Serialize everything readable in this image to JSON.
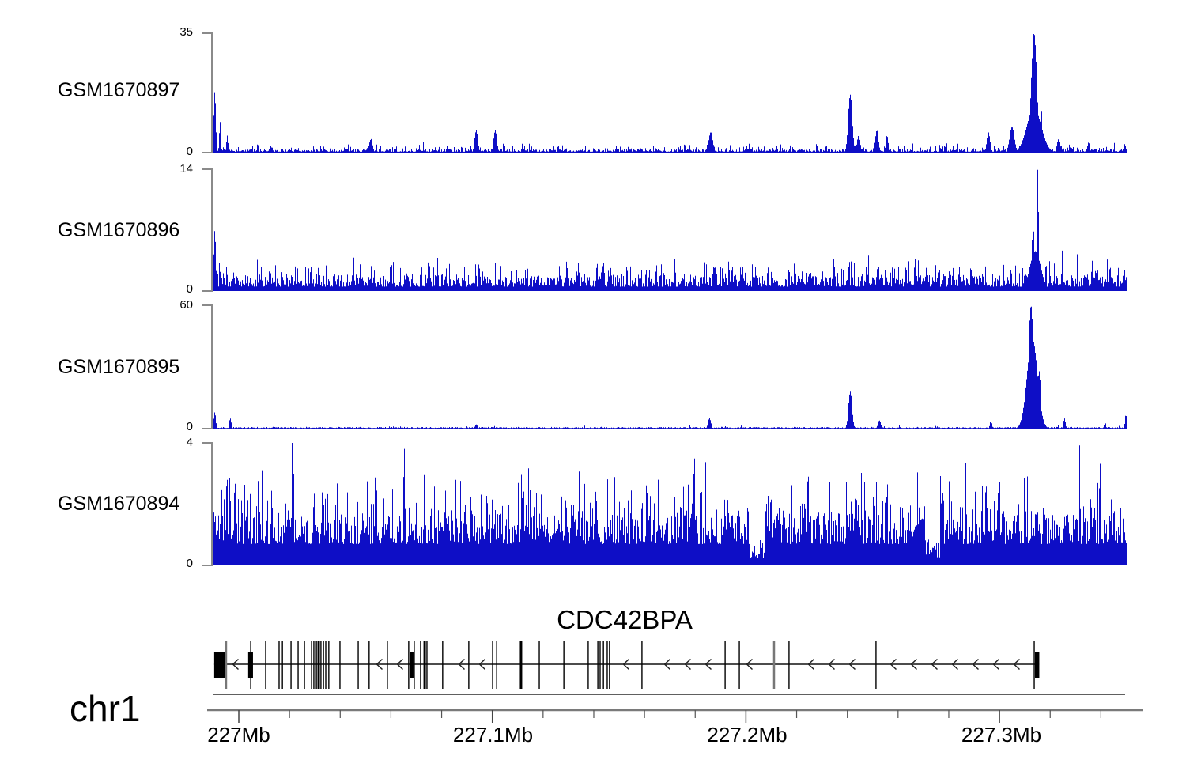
{
  "chart_data": {
    "type": "area",
    "title": "",
    "region": {
      "chrom": "chr1",
      "start_mb": 226.9897,
      "end_mb": 227.3499,
      "unit": "Mb"
    },
    "axis": {
      "tick_labels": [
        "227Mb",
        "227.1Mb",
        "227.2Mb",
        "227.3Mb"
      ],
      "major_ticks_mb": [
        227.0,
        227.1,
        227.2,
        227.3
      ],
      "minor_tick_interval_mb": 0.02,
      "grid": false
    },
    "signal_color": "#0e0ec6",
    "axis_color": "#8a8a8a",
    "tracks": [
      {
        "label": "GSM1670897",
        "ymax": 35,
        "ymin": 0,
        "ymin_label": "0",
        "seed": 7,
        "noise": {
          "base": 0.25,
          "jitter": 0.9,
          "p": 0.3,
          "spike": 2.0,
          "p2": 0.05,
          "spike2": 1.6
        },
        "peaks": [
          [
            226.9904,
            18,
            1.2
          ],
          [
            226.9925,
            9,
            1
          ],
          [
            226.9953,
            5,
            1
          ],
          [
            227.052,
            4,
            2
          ],
          [
            227.0935,
            6.5,
            2
          ],
          [
            227.101,
            6.5,
            2
          ],
          [
            227.186,
            6,
            2.5
          ],
          [
            227.241,
            17,
            2.5
          ],
          [
            227.2443,
            5,
            2
          ],
          [
            227.2515,
            6.5,
            2
          ],
          [
            227.2555,
            5,
            1.5
          ],
          [
            227.2955,
            6,
            2
          ],
          [
            227.3048,
            7.5,
            3
          ],
          [
            227.3135,
            35,
            3.5
          ],
          [
            227.3135,
            13,
            9
          ],
          [
            227.3163,
            14,
            1.2
          ],
          [
            227.3232,
            4,
            2
          ],
          [
            227.335,
            3,
            1.5
          ],
          [
            227.3492,
            2.5,
            1.5
          ]
        ]
      },
      {
        "label": "GSM1670896",
        "ymax": 14,
        "ymin": 0,
        "ymin_label": "0",
        "seed": 11,
        "noise": {
          "base": 0.5,
          "jitter": 1.4,
          "p": 0.45,
          "spike": 2.4,
          "p2": 0.08,
          "spike2": 1.6
        },
        "peaks": [
          [
            226.9904,
            7,
            1.2
          ],
          [
            227.3131,
            9,
            1.2
          ],
          [
            227.3149,
            14,
            1.2
          ],
          [
            227.314,
            4.5,
            7
          ],
          [
            227.3365,
            3.5,
            1.2
          ],
          [
            227.349,
            3,
            1.2
          ]
        ]
      },
      {
        "label": "GSM1670895",
        "ymax": 60,
        "ymin": 0,
        "ymin_label": "0",
        "seed": 13,
        "noise": {
          "base": 0.3,
          "jitter": 0.5,
          "p": 0.05,
          "spike": 1.2,
          "p2": 0.0,
          "spike2": 0
        },
        "peaks": [
          [
            226.9904,
            8,
            1.2
          ],
          [
            226.9965,
            5,
            1.2
          ],
          [
            227.0935,
            2,
            1.5
          ],
          [
            227.1855,
            5,
            1.8
          ],
          [
            227.241,
            18,
            2.2
          ],
          [
            227.2525,
            4,
            1.8
          ],
          [
            227.2965,
            4,
            1.2
          ],
          [
            227.3123,
            60,
            3
          ],
          [
            227.3128,
            44,
            6.5
          ],
          [
            227.3155,
            28,
            2
          ],
          [
            227.3255,
            5,
            1.2
          ],
          [
            227.3415,
            3.5,
            1
          ],
          [
            227.3497,
            7,
            1
          ]
        ]
      },
      {
        "label": "GSM1670894",
        "ymax": 4,
        "ymin": 0,
        "ymin_label": "0",
        "seed": 17,
        "noise": {
          "base": 0.7,
          "jitter": 1.0,
          "p": 0.5,
          "spike": 1.5,
          "p2": 0.12,
          "spike2": 1.2
        },
        "peaks": [
          [
            227.0651,
            3.9,
            1
          ],
          [
            227.1795,
            3.7,
            1
          ],
          [
            227.2865,
            3.4,
            1
          ],
          [
            227.3395,
            3.4,
            1
          ]
        ],
        "dips": [
          227.2045,
          227.2735
        ]
      }
    ],
    "gene": {
      "name": "CDC42BPA",
      "strand": "-",
      "start_mb": 226.9903,
      "end_mb": 227.3157,
      "exon_lines_mb": [
        227.0047,
        227.0106,
        227.0159,
        227.0172,
        227.0206,
        227.0234,
        227.0259,
        227.0287,
        227.0296,
        227.0306,
        227.0324,
        227.0334,
        227.0343,
        227.0355,
        227.0399,
        227.0471,
        227.0514,
        227.0586,
        227.067,
        227.0692,
        227.0717,
        227.0742,
        227.0804,
        227.0907,
        227.1001,
        227.1017,
        227.1185,
        227.1282,
        227.1378,
        227.1416,
        227.1425,
        227.1438,
        227.1453,
        227.1462,
        227.159,
        227.1918,
        227.1974,
        227.217,
        227.2513,
        227.3137
      ],
      "thick_exon_lines_mb": [
        227.0315,
        227.0733,
        227.1113
      ],
      "gray_exon_lines_mb": [
        226.995,
        227.2111
      ],
      "exon_boxes_mb": [
        [
          226.9903,
          226.9947
        ],
        [
          227.0037,
          227.0056
        ],
        [
          227.0674,
          227.0689
        ],
        [
          227.314,
          227.3157
        ]
      ]
    }
  }
}
